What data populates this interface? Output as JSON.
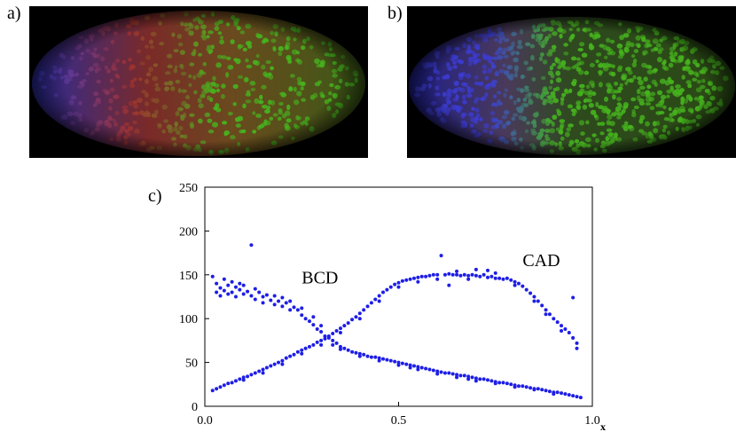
{
  "panels": {
    "a": {
      "label": "a)"
    },
    "b": {
      "label": "b)"
    },
    "c": {
      "label": "c)"
    }
  },
  "colors": {
    "background": "#ffffff",
    "frame": "#000000",
    "points": "#1e1ee6",
    "embryo_blue": "#3c3cd2",
    "embryo_red": "#a0322d",
    "embryo_green": "#46b41e"
  },
  "chart_data": {
    "type": "scatter",
    "xlabel": "x",
    "ylabel": "",
    "xlim": [
      0.0,
      1.0
    ],
    "ylim": [
      0,
      250
    ],
    "x_ticks": [
      "0.0",
      "0.5",
      "1.0"
    ],
    "y_ticks": [
      "0",
      "50",
      "100",
      "150",
      "200",
      "250"
    ],
    "grid": false,
    "annotations": [
      {
        "text": "BCD",
        "x": 0.25,
        "y": 140
      },
      {
        "text": "CAD",
        "x": 0.82,
        "y": 160
      }
    ],
    "series": [
      {
        "name": "BCD",
        "points": [
          [
            0.02,
            148
          ],
          [
            0.03,
            140
          ],
          [
            0.03,
            130
          ],
          [
            0.04,
            135
          ],
          [
            0.04,
            126
          ],
          [
            0.05,
            145
          ],
          [
            0.05,
            132
          ],
          [
            0.06,
            138
          ],
          [
            0.06,
            128
          ],
          [
            0.07,
            142
          ],
          [
            0.07,
            130
          ],
          [
            0.08,
            136
          ],
          [
            0.08,
            125
          ],
          [
            0.09,
            140
          ],
          [
            0.09,
            133
          ],
          [
            0.1,
            128
          ],
          [
            0.1,
            138
          ],
          [
            0.11,
            131
          ],
          [
            0.12,
            184
          ],
          [
            0.12,
            126
          ],
          [
            0.13,
            134
          ],
          [
            0.13,
            122
          ],
          [
            0.14,
            130
          ],
          [
            0.15,
            125
          ],
          [
            0.15,
            118
          ],
          [
            0.16,
            127
          ],
          [
            0.17,
            121
          ],
          [
            0.18,
            126
          ],
          [
            0.18,
            116
          ],
          [
            0.19,
            120
          ],
          [
            0.2,
            124
          ],
          [
            0.2,
            114
          ],
          [
            0.21,
            118
          ],
          [
            0.22,
            120
          ],
          [
            0.22,
            110
          ],
          [
            0.23,
            113
          ],
          [
            0.24,
            110
          ],
          [
            0.25,
            104
          ],
          [
            0.25,
            112
          ],
          [
            0.26,
            100
          ],
          [
            0.27,
            97
          ],
          [
            0.28,
            93
          ],
          [
            0.28,
            102
          ],
          [
            0.29,
            88
          ],
          [
            0.3,
            85
          ],
          [
            0.3,
            92
          ],
          [
            0.31,
            80
          ],
          [
            0.32,
            78
          ],
          [
            0.33,
            75
          ],
          [
            0.33,
            70
          ],
          [
            0.34,
            72
          ],
          [
            0.35,
            68
          ],
          [
            0.36,
            66
          ],
          [
            0.37,
            64
          ],
          [
            0.38,
            62
          ],
          [
            0.39,
            61
          ],
          [
            0.4,
            60
          ],
          [
            0.41,
            59
          ],
          [
            0.42,
            57
          ],
          [
            0.43,
            56
          ],
          [
            0.44,
            56
          ],
          [
            0.45,
            55
          ],
          [
            0.46,
            54
          ],
          [
            0.47,
            53
          ],
          [
            0.48,
            52
          ],
          [
            0.49,
            51
          ],
          [
            0.5,
            50
          ],
          [
            0.51,
            49
          ],
          [
            0.52,
            48
          ],
          [
            0.53,
            47
          ],
          [
            0.54,
            46
          ],
          [
            0.55,
            45
          ],
          [
            0.56,
            44
          ],
          [
            0.57,
            43
          ],
          [
            0.58,
            42
          ],
          [
            0.59,
            41
          ],
          [
            0.6,
            40
          ],
          [
            0.61,
            39
          ],
          [
            0.62,
            38
          ],
          [
            0.63,
            38
          ],
          [
            0.64,
            37
          ],
          [
            0.65,
            36
          ],
          [
            0.66,
            35
          ],
          [
            0.67,
            35
          ],
          [
            0.68,
            34
          ],
          [
            0.69,
            33
          ],
          [
            0.7,
            32
          ],
          [
            0.71,
            31
          ],
          [
            0.72,
            31
          ],
          [
            0.73,
            30
          ],
          [
            0.74,
            29
          ],
          [
            0.75,
            28
          ],
          [
            0.76,
            27
          ],
          [
            0.77,
            27
          ],
          [
            0.78,
            26
          ],
          [
            0.79,
            25
          ],
          [
            0.8,
            24
          ],
          [
            0.81,
            23
          ],
          [
            0.82,
            23
          ],
          [
            0.83,
            22
          ],
          [
            0.84,
            21
          ],
          [
            0.85,
            20
          ],
          [
            0.86,
            20
          ],
          [
            0.87,
            19
          ],
          [
            0.88,
            18
          ],
          [
            0.89,
            17
          ],
          [
            0.9,
            16
          ],
          [
            0.91,
            16
          ],
          [
            0.92,
            15
          ],
          [
            0.93,
            14
          ],
          [
            0.94,
            13
          ],
          [
            0.95,
            12
          ],
          [
            0.96,
            11
          ],
          [
            0.97,
            10
          ],
          [
            0.4,
            57
          ],
          [
            0.45,
            52
          ],
          [
            0.5,
            47
          ],
          [
            0.55,
            42
          ],
          [
            0.6,
            37
          ],
          [
            0.65,
            33
          ],
          [
            0.7,
            29
          ],
          [
            0.75,
            26
          ],
          [
            0.8,
            22
          ],
          [
            0.85,
            19
          ],
          [
            0.9,
            14
          ],
          [
            0.35,
            65
          ],
          [
            0.53,
            44
          ],
          [
            0.68,
            31
          ]
        ]
      },
      {
        "name": "CAD",
        "points": [
          [
            0.02,
            18
          ],
          [
            0.03,
            20
          ],
          [
            0.04,
            22
          ],
          [
            0.05,
            24
          ],
          [
            0.06,
            26
          ],
          [
            0.07,
            27
          ],
          [
            0.08,
            29
          ],
          [
            0.09,
            31
          ],
          [
            0.1,
            33
          ],
          [
            0.11,
            34
          ],
          [
            0.12,
            36
          ],
          [
            0.13,
            38
          ],
          [
            0.14,
            40
          ],
          [
            0.15,
            42
          ],
          [
            0.16,
            44
          ],
          [
            0.17,
            46
          ],
          [
            0.18,
            48
          ],
          [
            0.19,
            50
          ],
          [
            0.2,
            52
          ],
          [
            0.21,
            55
          ],
          [
            0.22,
            57
          ],
          [
            0.23,
            59
          ],
          [
            0.24,
            62
          ],
          [
            0.25,
            64
          ],
          [
            0.26,
            66
          ],
          [
            0.27,
            68
          ],
          [
            0.28,
            70
          ],
          [
            0.29,
            73
          ],
          [
            0.3,
            75
          ],
          [
            0.31,
            77
          ],
          [
            0.32,
            80
          ],
          [
            0.33,
            83
          ],
          [
            0.34,
            86
          ],
          [
            0.35,
            89
          ],
          [
            0.36,
            92
          ],
          [
            0.37,
            95
          ],
          [
            0.38,
            99
          ],
          [
            0.39,
            102
          ],
          [
            0.4,
            106
          ],
          [
            0.41,
            110
          ],
          [
            0.42,
            114
          ],
          [
            0.43,
            118
          ],
          [
            0.44,
            122
          ],
          [
            0.45,
            126
          ],
          [
            0.46,
            130
          ],
          [
            0.47,
            133
          ],
          [
            0.48,
            136
          ],
          [
            0.49,
            139
          ],
          [
            0.5,
            141
          ],
          [
            0.51,
            143
          ],
          [
            0.52,
            144
          ],
          [
            0.53,
            145
          ],
          [
            0.54,
            146
          ],
          [
            0.55,
            147
          ],
          [
            0.56,
            148
          ],
          [
            0.57,
            148
          ],
          [
            0.58,
            149
          ],
          [
            0.59,
            150
          ],
          [
            0.6,
            150
          ],
          [
            0.61,
            172
          ],
          [
            0.62,
            150
          ],
          [
            0.63,
            151
          ],
          [
            0.64,
            150
          ],
          [
            0.65,
            150
          ],
          [
            0.66,
            149
          ],
          [
            0.67,
            150
          ],
          [
            0.68,
            149
          ],
          [
            0.69,
            150
          ],
          [
            0.7,
            149
          ],
          [
            0.71,
            148
          ],
          [
            0.72,
            150
          ],
          [
            0.73,
            147
          ],
          [
            0.74,
            148
          ],
          [
            0.75,
            146
          ],
          [
            0.76,
            146
          ],
          [
            0.77,
            145
          ],
          [
            0.78,
            146
          ],
          [
            0.79,
            144
          ],
          [
            0.8,
            142
          ],
          [
            0.81,
            140
          ],
          [
            0.82,
            137
          ],
          [
            0.83,
            133
          ],
          [
            0.84,
            129
          ],
          [
            0.85,
            125
          ],
          [
            0.86,
            120
          ],
          [
            0.87,
            115
          ],
          [
            0.88,
            110
          ],
          [
            0.89,
            105
          ],
          [
            0.9,
            100
          ],
          [
            0.91,
            96
          ],
          [
            0.92,
            92
          ],
          [
            0.93,
            88
          ],
          [
            0.94,
            84
          ],
          [
            0.95,
            78
          ],
          [
            0.96,
            66
          ],
          [
            0.96,
            72
          ],
          [
            0.3,
            70
          ],
          [
            0.35,
            84
          ],
          [
            0.4,
            100
          ],
          [
            0.45,
            120
          ],
          [
            0.5,
            136
          ],
          [
            0.55,
            142
          ],
          [
            0.6,
            145
          ],
          [
            0.65,
            154
          ],
          [
            0.7,
            156
          ],
          [
            0.75,
            152
          ],
          [
            0.8,
            138
          ],
          [
            0.85,
            120
          ],
          [
            0.88,
            105
          ],
          [
            0.92,
            86
          ],
          [
            0.2,
            48
          ],
          [
            0.25,
            60
          ],
          [
            0.1,
            30
          ],
          [
            0.15,
            38
          ],
          [
            0.95,
            124
          ],
          [
            0.73,
            155
          ],
          [
            0.68,
            145
          ],
          [
            0.63,
            138
          ]
        ]
      }
    ]
  }
}
